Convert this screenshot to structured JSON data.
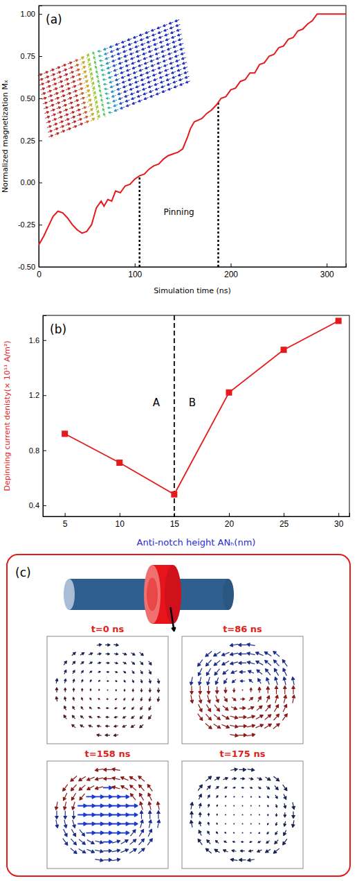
{
  "chart_data": [
    {
      "type": "line",
      "title": "(a)",
      "x_label": "Simulation time (ns)",
      "y_label": "Normalized magnetization Mₓ",
      "x": [
        0,
        5,
        10,
        15,
        20,
        25,
        30,
        35,
        40,
        45,
        50,
        55,
        60,
        65,
        68,
        72,
        76,
        80,
        85,
        90,
        95,
        100,
        105,
        110,
        115,
        120,
        125,
        130,
        135,
        140,
        145,
        150,
        155,
        158,
        162,
        166,
        170,
        175,
        180,
        185,
        190,
        195,
        200,
        205,
        210,
        215,
        220,
        225,
        230,
        235,
        240,
        245,
        250,
        255,
        260,
        265,
        270,
        275,
        280,
        285,
        290,
        300,
        310,
        320
      ],
      "series": [
        {
          "color": "#e41a1c",
          "values": [
            -0.37,
            -0.32,
            -0.26,
            -0.2,
            -0.17,
            -0.18,
            -0.21,
            -0.25,
            -0.28,
            -0.3,
            -0.29,
            -0.25,
            -0.15,
            -0.11,
            -0.14,
            -0.1,
            -0.11,
            -0.05,
            -0.06,
            -0.02,
            -0.01,
            0.02,
            0.04,
            0.05,
            0.08,
            0.1,
            0.11,
            0.14,
            0.16,
            0.17,
            0.18,
            0.2,
            0.27,
            0.32,
            0.36,
            0.37,
            0.38,
            0.41,
            0.43,
            0.46,
            0.5,
            0.51,
            0.55,
            0.56,
            0.6,
            0.61,
            0.65,
            0.65,
            0.7,
            0.71,
            0.75,
            0.76,
            0.8,
            0.81,
            0.85,
            0.86,
            0.9,
            0.91,
            0.94,
            0.96,
            1.0,
            1.0,
            1.0,
            1.0
          ]
        }
      ],
      "xlim": [
        0,
        320
      ],
      "xticks": [
        0,
        100,
        200,
        300
      ],
      "ylim": [
        -0.5,
        1.05
      ],
      "yticks": [
        {
          "value": -0.5,
          "label": "-0.50"
        },
        {
          "value": -0.25,
          "label": "-0.25"
        },
        {
          "value": 0,
          "label": "0.00"
        },
        {
          "value": 0.25,
          "label": "0.25"
        },
        {
          "value": 0.5,
          "label": "0.50"
        },
        {
          "value": 0.75,
          "label": "0.75"
        },
        {
          "value": 1,
          "label": "1.00"
        }
      ],
      "pinning_lines": [
        {
          "x": 105,
          "y": 0.04
        },
        {
          "x": 187,
          "y": 0.48
        }
      ],
      "annotations": [
        "Pinning"
      ]
    },
    {
      "type": "line",
      "title": "(b)",
      "marker": "square",
      "x_label": "Anti-notch height ANₕ(nm)",
      "y_label": "Depinning current denisty(× 10¹¹ A/m²)",
      "x": [
        5,
        10,
        15,
        20,
        25,
        30
      ],
      "series": [
        {
          "color": "#e41a1c",
          "values": [
            0.92,
            0.71,
            0.48,
            1.22,
            1.53,
            1.74
          ]
        }
      ],
      "xlim": [
        3,
        31
      ],
      "xticks": [
        5,
        10,
        15,
        20,
        25,
        30
      ],
      "ylim": [
        0.32,
        1.78
      ],
      "yticks": [
        0.4,
        0.8,
        1.2,
        1.6
      ],
      "divider": 15,
      "annotations": [
        "A",
        "B"
      ]
    }
  ],
  "diagram": {
    "label": "(c)",
    "snapshots": [
      "t=0 ns",
      "t=86 ns",
      "t=158 ns",
      "t=175 ns"
    ]
  }
}
